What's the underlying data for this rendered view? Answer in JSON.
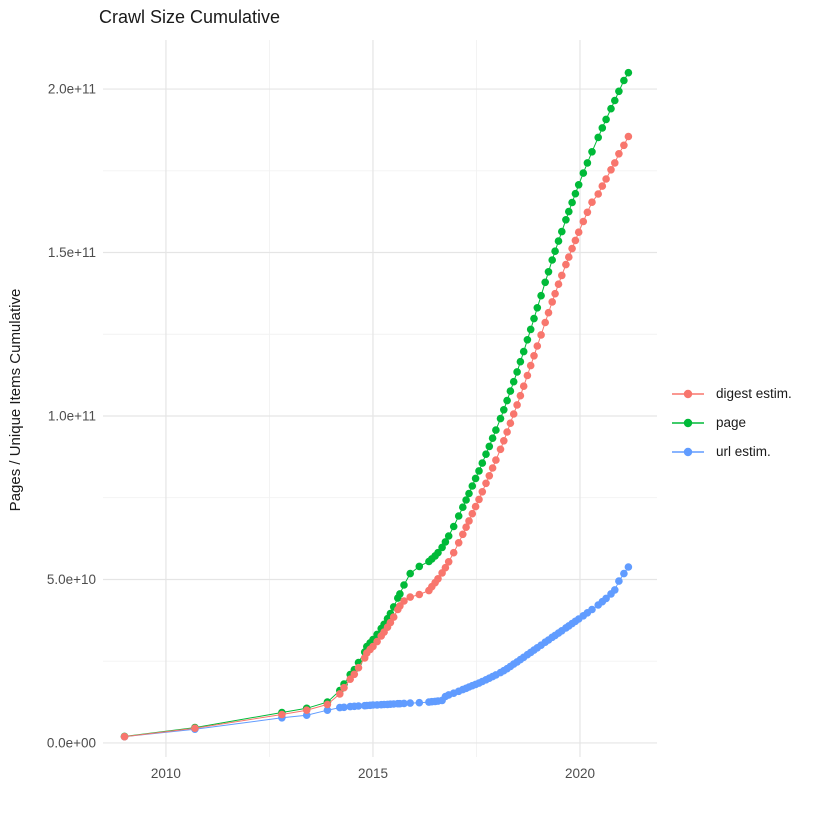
{
  "chart_data": {
    "type": "scatter",
    "title": "Crawl Size Cumulative",
    "xlabel": "",
    "ylabel": "Pages / Unique Items Cumulative",
    "unit": "values in billions (1e9); y axis shown in scientific notation",
    "grid": true,
    "legend_position": "right",
    "xlim": [
      2008.48,
      2021.86
    ],
    "ylim_e9": [
      -4.3,
      215
    ],
    "x_ticks": [
      {
        "v": 2010,
        "label": "2010"
      },
      {
        "v": 2015,
        "label": "2015"
      },
      {
        "v": 2020,
        "label": "2020"
      }
    ],
    "x_minor": [
      2012.5,
      2017.5
    ],
    "y_ticks": [
      {
        "v": 0,
        "label": "0.0e+00"
      },
      {
        "v": 50,
        "label": "5.0e+10"
      },
      {
        "v": 100,
        "label": "1.0e+11"
      },
      {
        "v": 150,
        "label": "1.5e+11"
      },
      {
        "v": 200,
        "label": "2.0e+11"
      }
    ],
    "y_minor": [
      25,
      75,
      125,
      175
    ],
    "x": [
      2009.0,
      2010.7,
      2012.8,
      2013.4,
      2013.9,
      2014.2,
      2014.3,
      2014.45,
      2014.55,
      2014.65,
      2014.8,
      2014.85,
      2014.93,
      2015.0,
      2015.1,
      2015.2,
      2015.27,
      2015.35,
      2015.42,
      2015.5,
      2015.6,
      2015.65,
      2015.75,
      2015.9,
      2016.12,
      2016.35,
      2016.42,
      2016.5,
      2016.57,
      2016.67,
      2016.75,
      2016.83,
      2016.95,
      2017.07,
      2017.17,
      2017.25,
      2017.32,
      2017.4,
      2017.48,
      2017.56,
      2017.64,
      2017.73,
      2017.81,
      2017.89,
      2017.97,
      2018.08,
      2018.16,
      2018.24,
      2018.32,
      2018.4,
      2018.48,
      2018.56,
      2018.64,
      2018.73,
      2018.81,
      2018.89,
      2018.97,
      2019.06,
      2019.16,
      2019.24,
      2019.33,
      2019.4,
      2019.48,
      2019.56,
      2019.66,
      2019.73,
      2019.81,
      2019.89,
      2019.97,
      2020.08,
      2020.18,
      2020.29,
      2020.44,
      2020.54,
      2020.63,
      2020.75,
      2020.84,
      2020.94,
      2021.06,
      2021.17
    ],
    "series": [
      {
        "name": "digest estim.",
        "color": "#F8766D",
        "values": [
          1.9,
          4.5,
          8.7,
          10.0,
          11.8,
          15.0,
          16.9,
          19.5,
          21.0,
          23.0,
          26.0,
          27.5,
          28.6,
          29.5,
          31.0,
          32.7,
          33.9,
          35.4,
          36.8,
          38.5,
          40.8,
          41.9,
          43.4,
          44.6,
          45.4,
          46.6,
          47.8,
          49.0,
          50.2,
          52.0,
          53.6,
          55.4,
          58.2,
          61.2,
          63.8,
          66.0,
          67.9,
          70.1,
          72.3,
          74.5,
          76.8,
          79.4,
          81.7,
          84.1,
          86.5,
          89.8,
          92.4,
          95.1,
          97.8,
          100.6,
          103.4,
          106.2,
          109.1,
          112.4,
          115.4,
          118.4,
          121.4,
          124.8,
          128.6,
          131.6,
          134.9,
          137.4,
          140.3,
          143.0,
          146.3,
          148.6,
          151.2,
          153.7,
          156.2,
          159.5,
          162.3,
          165.4,
          167.9,
          170.3,
          172.5,
          175.3,
          177.4,
          180.2,
          182.8,
          185.5
        ]
      },
      {
        "name": "page",
        "color": "#00BA38",
        "values": [
          2.0,
          4.7,
          9.3,
          10.6,
          12.5,
          16.0,
          18.0,
          20.9,
          22.4,
          24.6,
          27.8,
          29.5,
          30.6,
          31.6,
          33.2,
          35.0,
          36.3,
          38.0,
          39.6,
          41.6,
          44.3,
          45.6,
          48.3,
          51.8,
          54.0,
          55.5,
          56.3,
          57.2,
          58.2,
          59.8,
          61.5,
          63.3,
          66.2,
          69.4,
          72.1,
          74.3,
          76.3,
          78.6,
          80.9,
          83.2,
          85.6,
          88.3,
          90.7,
          93.2,
          95.7,
          99.2,
          101.9,
          104.7,
          107.6,
          110.5,
          113.5,
          116.6,
          119.7,
          123.3,
          126.5,
          129.8,
          133.1,
          136.8,
          140.9,
          144.1,
          147.7,
          150.4,
          153.5,
          156.4,
          160.0,
          162.5,
          165.3,
          168.0,
          170.7,
          174.3,
          177.4,
          180.8,
          185.2,
          188.1,
          190.7,
          194.0,
          196.5,
          199.3,
          202.6,
          205.0
        ]
      },
      {
        "name": "url estim.",
        "color": "#619CFF",
        "values": [
          1.9,
          4.2,
          7.7,
          8.5,
          10.0,
          10.8,
          10.9,
          11.1,
          11.2,
          11.3,
          11.4,
          11.45,
          11.5,
          11.6,
          11.65,
          11.7,
          11.75,
          11.8,
          11.85,
          11.9,
          12.0,
          12.0,
          12.1,
          12.2,
          12.3,
          12.5,
          12.6,
          12.7,
          12.8,
          13.0,
          14.2,
          14.7,
          15.2,
          15.8,
          16.3,
          16.7,
          17.1,
          17.5,
          17.9,
          18.3,
          18.8,
          19.3,
          19.8,
          20.3,
          20.8,
          21.5,
          22.1,
          22.7,
          23.4,
          24.1,
          24.8,
          25.5,
          26.2,
          27.0,
          27.7,
          28.4,
          29.1,
          29.9,
          30.8,
          31.5,
          32.3,
          32.9,
          33.6,
          34.3,
          35.2,
          35.8,
          36.5,
          37.2,
          37.9,
          38.9,
          39.8,
          40.8,
          42.2,
          43.2,
          44.2,
          45.6,
          46.8,
          49.5,
          51.8,
          53.8
        ]
      }
    ]
  },
  "style": {
    "major_grid_color": "#e5e5e5",
    "minor_grid_color": "#f2f2f2",
    "tick_label_color": "#4d4d4d",
    "text_color": "#1a1a1a",
    "background": "#ffffff"
  }
}
